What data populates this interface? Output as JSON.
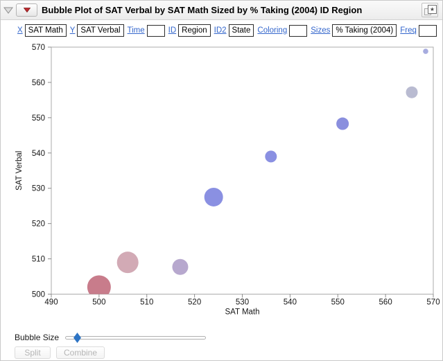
{
  "header": {
    "title": "Bubble Plot of SAT Verbal by SAT Math Sized by % Taking (2004) ID Region"
  },
  "controls": {
    "fields": [
      {
        "role": "X",
        "value": "SAT Math"
      },
      {
        "role": "Y",
        "value": "SAT Verbal"
      },
      {
        "role": "Time",
        "value": ""
      },
      {
        "role": "ID",
        "value": "Region"
      },
      {
        "role": "ID2",
        "value": "State"
      },
      {
        "role": "Coloring",
        "value": ""
      },
      {
        "role": "Sizes",
        "value": "% Taking (2004)"
      },
      {
        "role": "Freq",
        "value": ""
      }
    ]
  },
  "chart_data": {
    "type": "bubble",
    "title": "",
    "xlabel": "SAT Math",
    "ylabel": "SAT Verbal",
    "xlim": [
      490,
      570
    ],
    "ylim": [
      500,
      570
    ],
    "xticks": [
      490,
      500,
      510,
      520,
      530,
      540,
      550,
      560,
      570
    ],
    "yticks": [
      500,
      510,
      520,
      530,
      540,
      550,
      560,
      570
    ],
    "grid": false,
    "legend": "none",
    "points": [
      {
        "x": 500.0,
        "y": 502.0,
        "radius_px": 17.0,
        "color": "#c87c8b"
      },
      {
        "x": 506.0,
        "y": 509.0,
        "radius_px": 15.5,
        "color": "#d2aab5"
      },
      {
        "x": 517.0,
        "y": 507.7,
        "radius_px": 11.5,
        "color": "#b7a8ce"
      },
      {
        "x": 524.0,
        "y": 527.5,
        "radius_px": 13.5,
        "color": "#8a90e2"
      },
      {
        "x": 536.0,
        "y": 539.0,
        "radius_px": 8.5,
        "color": "#8a90e2"
      },
      {
        "x": 551.0,
        "y": 548.3,
        "radius_px": 9.0,
        "color": "#8a8fde"
      },
      {
        "x": 565.5,
        "y": 557.2,
        "radius_px": 8.5,
        "color": "#b9bbd1"
      },
      {
        "x": 568.4,
        "y": 568.8,
        "radius_px": 3.8,
        "color": "#a7acdf"
      }
    ]
  },
  "footer": {
    "bubble_size_label": "Bubble Size",
    "split_label": "Split",
    "combine_label": "Combine"
  },
  "icons": {
    "disclosure": "open-triangle-down",
    "red_triangle": "red-triangle-menu",
    "bookmark": "save-script-star",
    "star_glyph": "★"
  },
  "colors": {
    "link_blue": "#3366cc",
    "red_triangle": "#c02a2e",
    "slider_thumb": "#2d74c4",
    "frame_gray": "#ababab"
  }
}
